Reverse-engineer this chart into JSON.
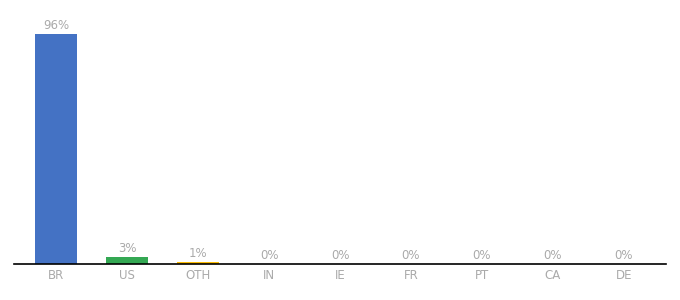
{
  "categories": [
    "BR",
    "US",
    "OTH",
    "IN",
    "IE",
    "FR",
    "PT",
    "CA",
    "DE"
  ],
  "values": [
    96,
    3,
    1,
    0,
    0,
    0,
    0,
    0,
    0
  ],
  "labels": [
    "96%",
    "3%",
    "1%",
    "0%",
    "0%",
    "0%",
    "0%",
    "0%",
    "0%"
  ],
  "bar_colors": [
    "#4472c4",
    "#34a853",
    "#fbbc04",
    "#4472c4",
    "#4472c4",
    "#4472c4",
    "#4472c4",
    "#4472c4",
    "#4472c4"
  ],
  "background_color": "#ffffff",
  "ylim": [
    0,
    100
  ],
  "label_fontsize": 8.5,
  "tick_fontsize": 8.5,
  "label_color": "#aaaaaa",
  "tick_color": "#aaaaaa",
  "bar_width": 0.6
}
